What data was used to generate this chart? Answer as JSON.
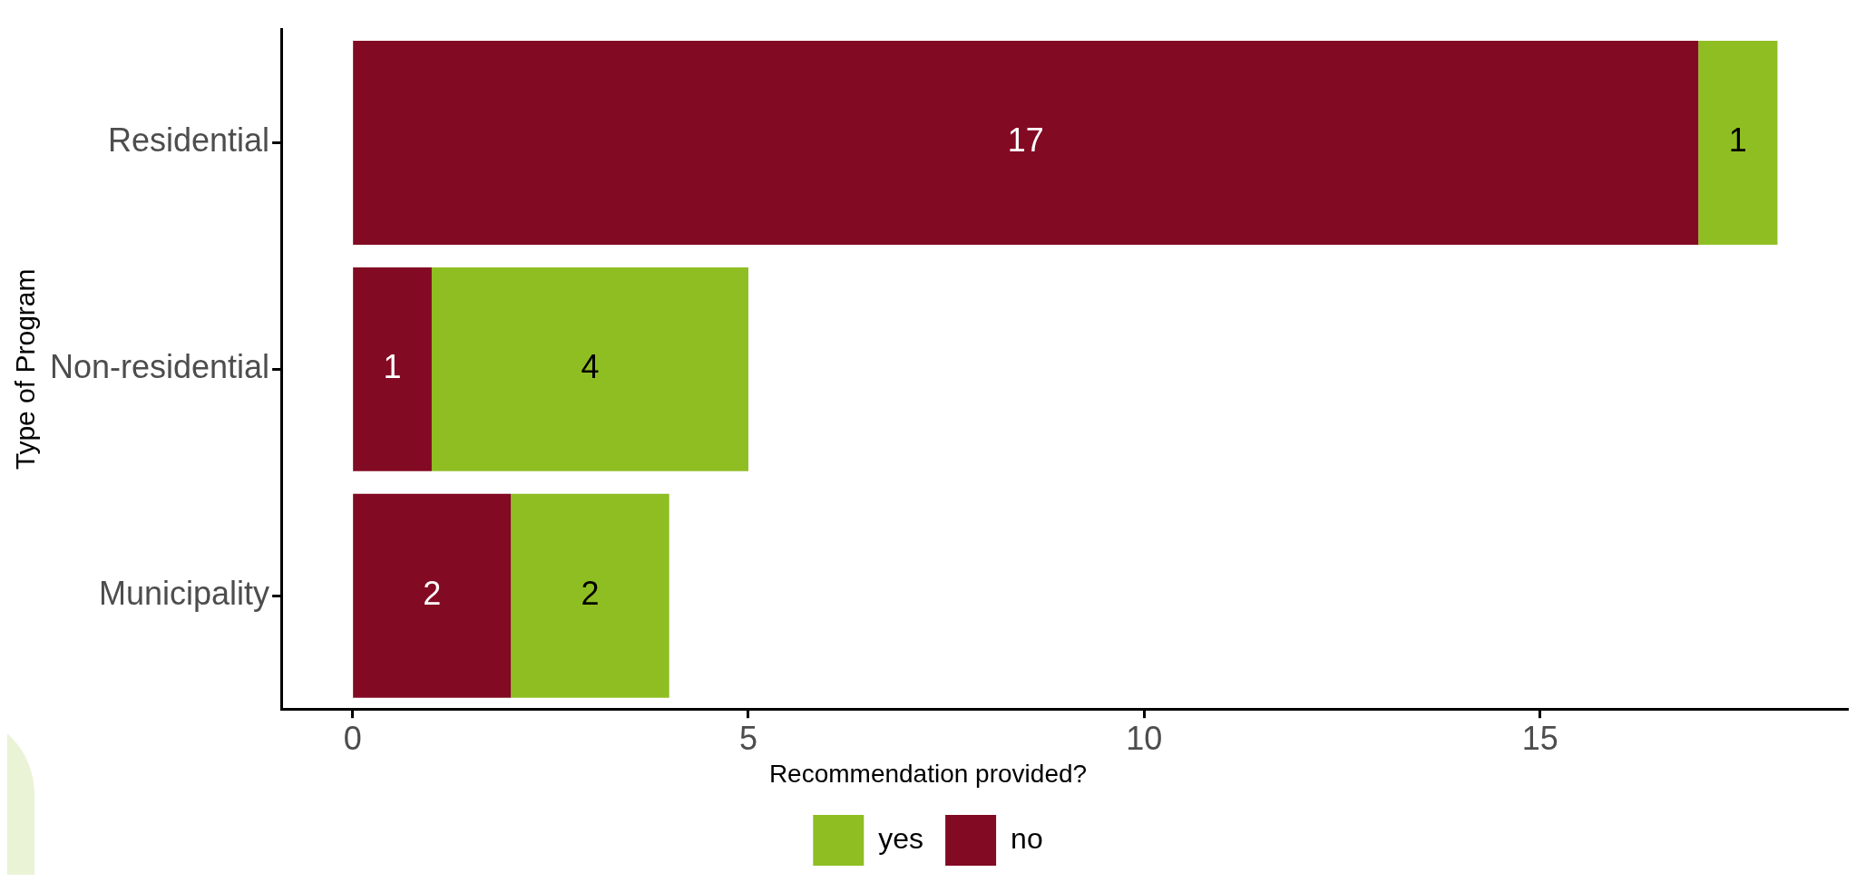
{
  "chart_data": {
    "type": "bar",
    "orientation": "horizontal",
    "stacked": true,
    "ylabel": "Type of Program",
    "legend_title": "Recommendation provided?",
    "categories": [
      "Residential",
      "Non-residential",
      "Municipality"
    ],
    "series": [
      {
        "name": "no",
        "color": "#820a23",
        "values": [
          17,
          1,
          2
        ]
      },
      {
        "name": "yes",
        "color": "#8fbe23",
        "values": [
          1,
          4,
          2
        ]
      }
    ],
    "xlim": [
      -0.9,
      18.9
    ],
    "xticks": [
      0,
      5,
      10,
      15
    ],
    "grid": false,
    "legend": "bottom",
    "data_labels": true
  }
}
